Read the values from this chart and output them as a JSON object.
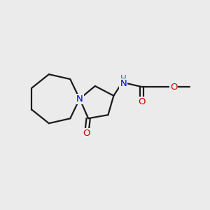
{
  "bg_color": "#ebebeb",
  "bond_color": "#1a1a1a",
  "N_color": "#0000cc",
  "NH_color": "#008888",
  "O_color": "#cc0000",
  "font_size": 9.5,
  "bond_width": 1.6,
  "figsize": [
    3.0,
    3.0
  ],
  "dpi": 100,
  "xlim": [
    0,
    10
  ],
  "ylim": [
    0,
    10
  ]
}
